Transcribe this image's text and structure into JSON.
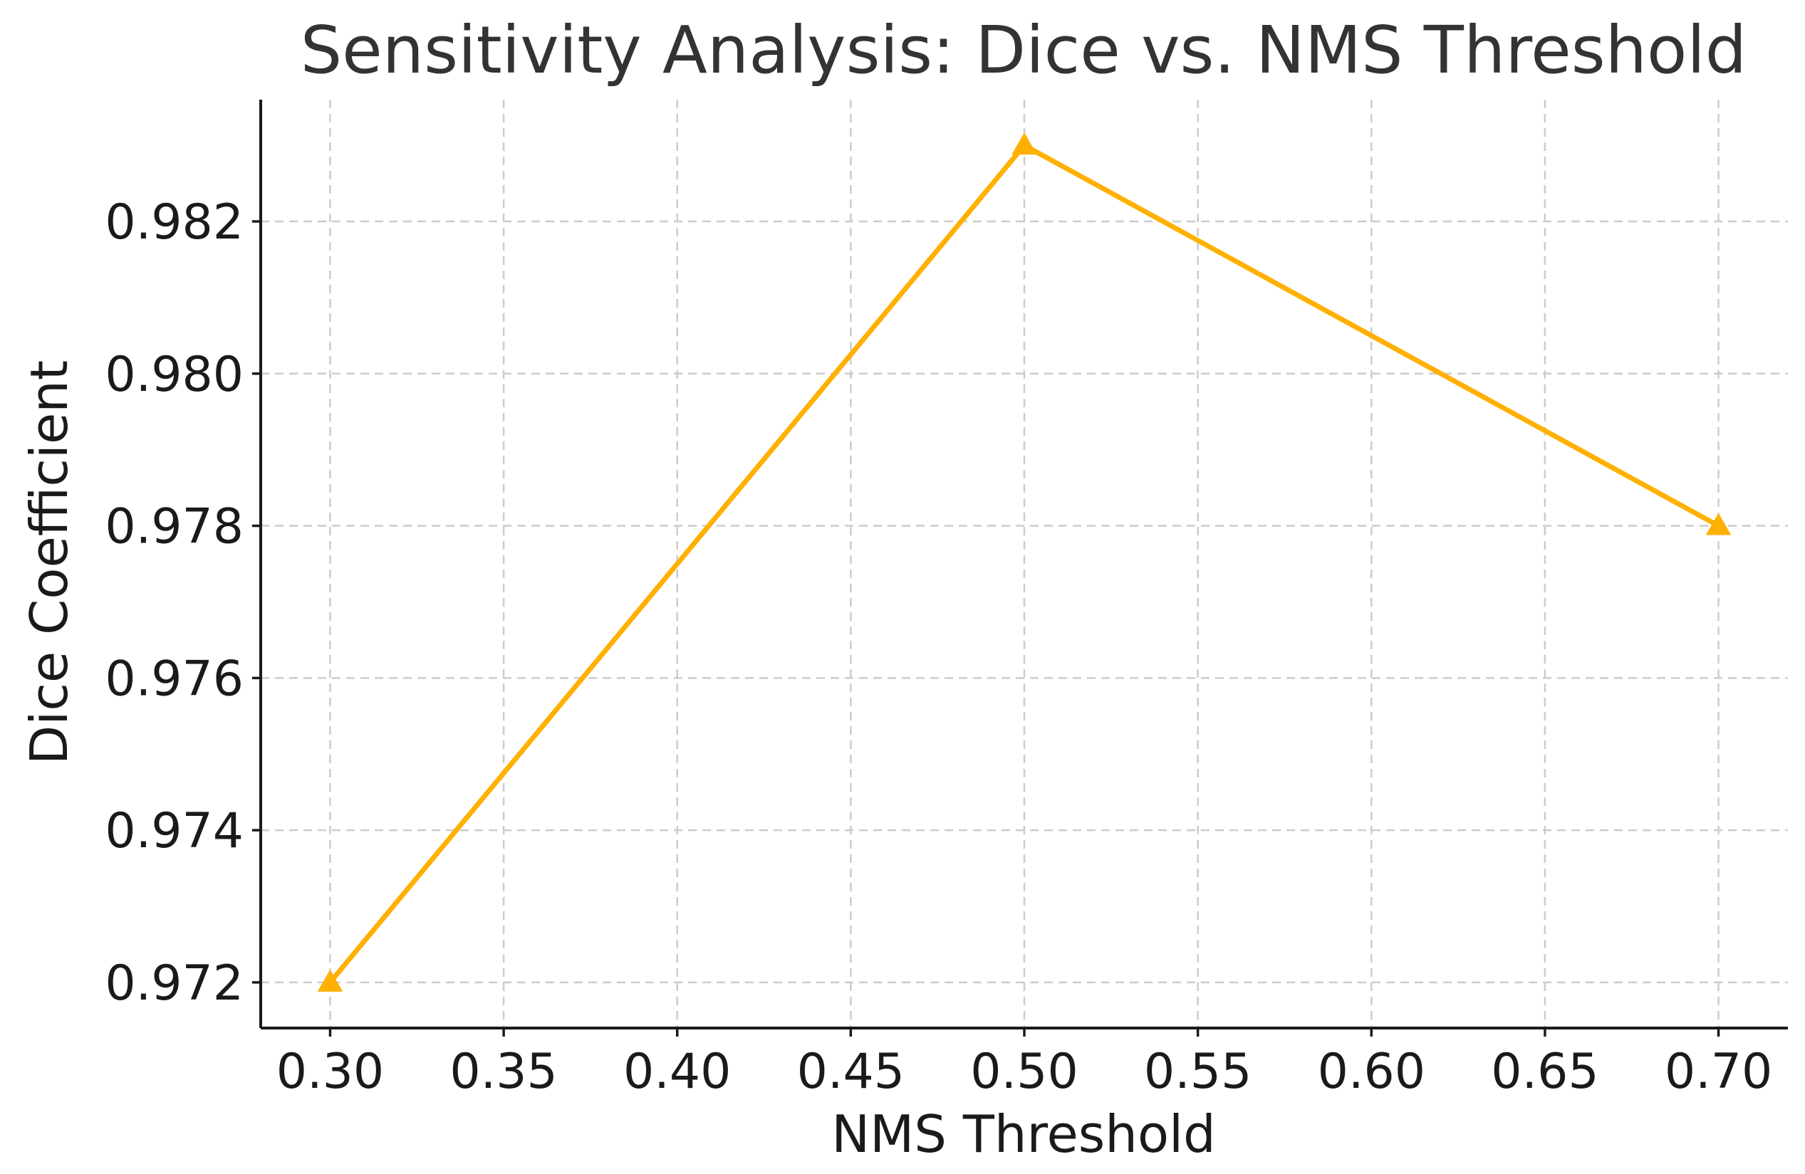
{
  "chart_data": {
    "type": "line",
    "title": "Sensitivity Analysis: Dice vs. NMS Threshold",
    "xlabel": "NMS Threshold",
    "ylabel": "Dice Coefficient",
    "x": [
      0.3,
      0.5,
      0.7
    ],
    "series": [
      {
        "values": [
          0.972,
          0.983,
          0.978
        ],
        "color": "#FFB000",
        "marker": "triangle-up"
      }
    ],
    "xlim": [
      0.28,
      0.72
    ],
    "ylim": [
      0.9714,
      0.9836
    ],
    "xticks": [
      0.3,
      0.35,
      0.4,
      0.45,
      0.5,
      0.55,
      0.6,
      0.65,
      0.7
    ],
    "xtick_labels": [
      "0.30",
      "0.35",
      "0.40",
      "0.45",
      "0.50",
      "0.55",
      "0.60",
      "0.65",
      "0.70"
    ],
    "yticks": [
      0.972,
      0.974,
      0.976,
      0.978,
      0.98,
      0.982
    ],
    "ytick_labels": [
      "0.972",
      "0.974",
      "0.976",
      "0.978",
      "0.980",
      "0.982"
    ],
    "grid": true,
    "legend": "none"
  }
}
